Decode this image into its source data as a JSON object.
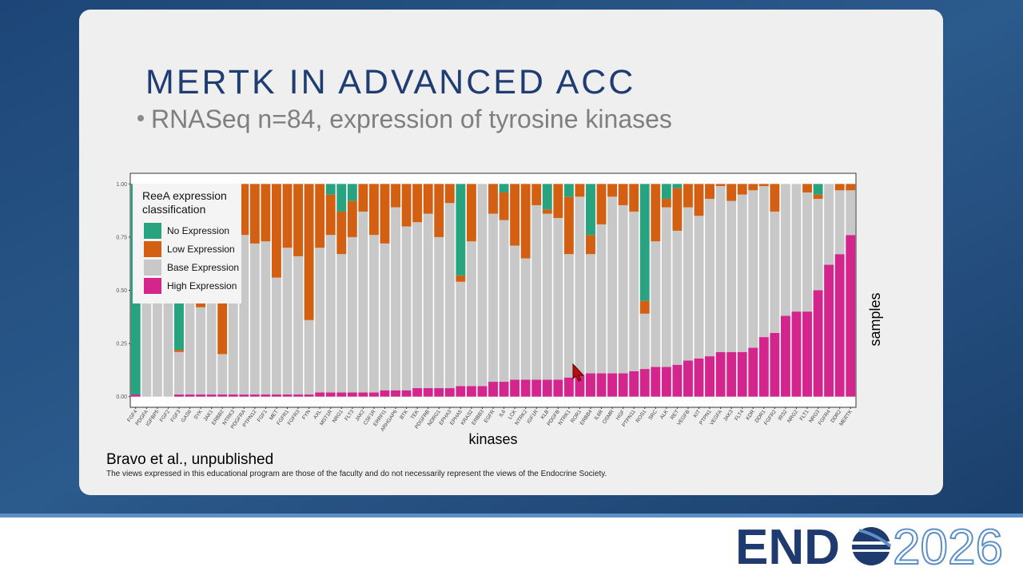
{
  "slide": {
    "title": "MERTK IN ADVANCED ACC",
    "bullet": "RNASeq n=84, expression of tyrosine kinases",
    "citation": "Bravo et al., unpublished",
    "disclaimer": "The views expressed in this educational program are those of the faculty and do not necessarily represent the views of the Endocrine Society.",
    "logo": {
      "left": "END",
      "right": "2026"
    }
  },
  "chart_data": {
    "type": "stacked_bar",
    "x_label": "kinases",
    "y_label": "samples",
    "legend_title": [
      "ReeA expression",
      "classification"
    ],
    "categories": [
      "FGF4",
      "PDGFA",
      "IGFBP5",
      "FGF2",
      "FGF3",
      "GAS6",
      "SYK",
      "JAK1",
      "ERBB2",
      "NTRK3",
      "PDGFRA",
      "PTPN12",
      "FGF1",
      "MET",
      "FGFR1",
      "FGFR3",
      "FYN",
      "AXL",
      "MST1R",
      "NRG1",
      "FLT3",
      "JAK2",
      "CSF1R",
      "ERRFI1",
      "ARHGAP6",
      "BTK",
      "TEK",
      "PDGFRB",
      "NDRG1",
      "EPHA3",
      "EPHA5",
      "KRAS2",
      "ERBB3",
      "EGFR",
      "IL6",
      "LCK",
      "NTRK2",
      "IGF1R",
      "KLB",
      "PDGFB",
      "NTRK1",
      "ROR1",
      "ERBB4",
      "IL6R",
      "OSMR",
      "HGF",
      "PTPN11",
      "ROS1",
      "SRC",
      "ALK",
      "RET",
      "VEGFB",
      "KIT",
      "PTPN1",
      "VEGFA",
      "JAK3",
      "FLT4",
      "KDR",
      "DDR1",
      "FGFR2",
      "IRS2",
      "NRG2",
      "FLT1",
      "NRG3",
      "FGFR4",
      "DDR2",
      "MERTK"
    ],
    "series": [
      {
        "name": "High Expression",
        "color": "#d4258c",
        "values": [
          0.01,
          0,
          0,
          0,
          0.01,
          0.01,
          0.01,
          0.01,
          0.01,
          0.01,
          0.01,
          0.01,
          0.01,
          0.01,
          0.01,
          0.01,
          0.01,
          0.02,
          0.02,
          0.02,
          0.02,
          0.02,
          0.02,
          0.03,
          0.03,
          0.03,
          0.04,
          0.04,
          0.04,
          0.04,
          0.05,
          0.05,
          0.05,
          0.07,
          0.07,
          0.08,
          0.08,
          0.08,
          0.08,
          0.08,
          0.09,
          0.1,
          0.11,
          0.11,
          0.11,
          0.11,
          0.12,
          0.13,
          0.14,
          0.14,
          0.15,
          0.17,
          0.18,
          0.19,
          0.21,
          0.21,
          0.21,
          0.23,
          0.28,
          0.3,
          0.38,
          0.4,
          0.4,
          0.5,
          0.62,
          0.67,
          0.76
        ]
      },
      {
        "name": "Base Expression",
        "color": "#c8c8c8",
        "values": [
          0,
          1,
          1,
          1,
          0.2,
          0.99,
          0.41,
          0.99,
          0.19,
          0.99,
          0.75,
          0.71,
          0.72,
          0.55,
          0.69,
          0.65,
          0.35,
          0.68,
          0.74,
          0.65,
          0.73,
          0.85,
          0.74,
          0.69,
          0.86,
          0.77,
          0.78,
          0.82,
          0.71,
          0.87,
          0.49,
          0.68,
          0.95,
          0.79,
          0.76,
          0.63,
          0.57,
          0.82,
          0.78,
          0.76,
          0.58,
          0.84,
          0.56,
          0.7,
          0.83,
          0.79,
          0.75,
          0.26,
          0.59,
          0.75,
          0.63,
          0.72,
          0.67,
          0.74,
          0.78,
          0.71,
          0.74,
          0.74,
          0.71,
          0.57,
          0.62,
          0.6,
          0.56,
          0.43,
          0.38,
          0.3,
          0.21
        ]
      },
      {
        "name": "Low Expression",
        "color": "#d35f13",
        "values": [
          0,
          0,
          0,
          0,
          0.01,
          0,
          0.58,
          0,
          0.8,
          0,
          0.24,
          0.28,
          0.27,
          0.44,
          0.3,
          0.34,
          0.64,
          0.3,
          0.19,
          0.2,
          0.17,
          0.13,
          0.24,
          0.28,
          0.11,
          0.2,
          0.18,
          0.14,
          0.25,
          0.09,
          0.03,
          0.27,
          0,
          0.14,
          0.13,
          0.29,
          0.35,
          0.1,
          0.02,
          0.16,
          0.27,
          0.06,
          0.09,
          0.19,
          0.06,
          0.1,
          0.13,
          0.06,
          0.27,
          0.04,
          0.2,
          0.11,
          0.15,
          0.07,
          0.01,
          0.08,
          0.05,
          0.03,
          0.01,
          0.13,
          0,
          0,
          0.04,
          0.02,
          0,
          0.03,
          0.03
        ]
      },
      {
        "name": "No Expression",
        "color": "#28a37f",
        "values": [
          0.99,
          0,
          0,
          0,
          0.78,
          0,
          0,
          0,
          0,
          0,
          0,
          0,
          0,
          0,
          0,
          0,
          0,
          0,
          0.05,
          0.13,
          0.08,
          0,
          0,
          0,
          0,
          0,
          0,
          0,
          0,
          0,
          0.43,
          0,
          0,
          0,
          0.04,
          0,
          0,
          0,
          0.12,
          0,
          0.06,
          0,
          0.24,
          0,
          0,
          0,
          0,
          0.55,
          0,
          0.07,
          0.02,
          0,
          0,
          0,
          0,
          0,
          0,
          0,
          0,
          0,
          0,
          0,
          0,
          0.05,
          0,
          0,
          0
        ]
      }
    ],
    "ylim": [
      -0.05,
      1.05
    ],
    "yticks": [
      {
        "value": 0,
        "label": "0.00"
      },
      {
        "value": 0.25,
        "label": "0.25"
      },
      {
        "value": 0.5,
        "label": "0.50"
      },
      {
        "value": 0.75,
        "label": "0.75"
      },
      {
        "value": 1,
        "label": "1.00"
      }
    ]
  }
}
